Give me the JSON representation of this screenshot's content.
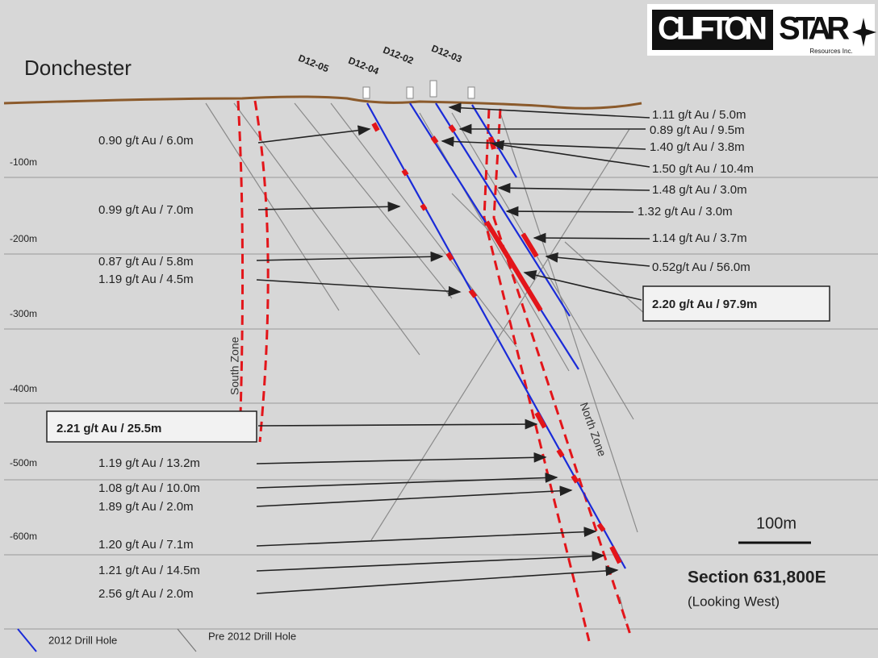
{
  "title": "Donchester",
  "logo": {
    "word1": "CLIFTON",
    "word2": "STAR",
    "sub": "Resources Inc."
  },
  "holes": [
    "D12-05",
    "D12-04",
    "D12-02",
    "D12-03"
  ],
  "depths": [
    "-100m",
    "-200m",
    "-300m",
    "-400m",
    "-500m",
    "-600m"
  ],
  "left_intercepts": [
    "0.90 g/t Au / 6.0m",
    "0.99 g/t Au / 7.0m",
    "0.87 g/t Au / 5.8m",
    "1.19 g/t Au / 4.5m",
    "2.21 g/t Au / 25.5m",
    "1.19 g/t Au / 13.2m",
    "1.08 g/t Au / 10.0m",
    "1.89 g/t Au / 2.0m",
    "1.20 g/t Au / 7.1m",
    "1.21 g/t Au / 14.5m",
    "2.56 g/t Au / 2.0m"
  ],
  "right_intercepts": [
    "1.11 g/t Au / 5.0m",
    "0.89 g/t Au / 9.5m",
    "1.40 g/t Au / 3.8m",
    "1.50 g/t Au / 10.4m",
    "1.48 g/t Au / 3.0m",
    "1.32 g/t Au / 3.0m",
    "1.14 g/t Au / 3.7m",
    "0.52g/t Au / 56.0m",
    "2.20 g/t Au / 97.9m"
  ],
  "zones": [
    "South Zone",
    "North Zone"
  ],
  "scale": "100m",
  "section": {
    "title": "Section 631,800E",
    "subtitle": "(Looking West)"
  },
  "legend": [
    "2012 Drill Hole",
    "Pre 2012 Drill Hole"
  ]
}
